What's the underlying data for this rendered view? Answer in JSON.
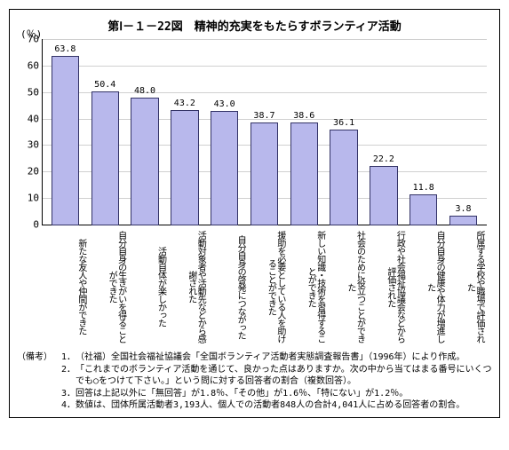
{
  "title": "第Ⅰ－１－22図　精神的充実をもたらすボランティア活動",
  "chart": {
    "type": "bar",
    "y_unit": "(％)",
    "ylim": [
      0,
      70
    ],
    "ytick_step": 10,
    "bar_color": "#b8b8ec",
    "bar_border": "#333366",
    "grid_color": "#d0d0d0",
    "axis_color": "#000000",
    "background": "#ffffff",
    "value_fontsize": 10,
    "tick_fontsize": 11,
    "title_fontsize": 13,
    "categories": [
      "新たな友人や仲間ができた",
      "自分自身の生きがいを得ることができた",
      "活動自体が楽しかった",
      "活動対象者や活動先などから感謝された",
      "自分自身の啓発につながった",
      "援助を必要としている人を助けることができた",
      "新しい知識・技術を習得することができた",
      "社会のために役立つことができた",
      "行政や社会福祉協議会などから評価された",
      "自分自身の健康や体力が増進した",
      "所属する学校や職場で評価された"
    ],
    "values": [
      63.8,
      50.4,
      48.0,
      43.2,
      43.0,
      38.7,
      38.6,
      36.1,
      22.2,
      11.8,
      3.8
    ]
  },
  "notes": {
    "head": "（備考）",
    "items": [
      "（社福）全国社会福祉協議会「全国ボランティア活動者実態調査報告書」（1996年）により作成。",
      "「これまでのボランティア活動を通じて、良かった点はありますか。次の中から当てはまる番号にいくつでも○をつけて下さい。」という問に対する回答者の割合（複数回答）。",
      "回答は上記以外に「無回答」が1.8％、「その他」が1.6％、「特にない」が1.2％。",
      "数値は、団体所属活動者3,193人、個人での活動者848人の合計4,041人に占める回答者の割合。"
    ]
  }
}
